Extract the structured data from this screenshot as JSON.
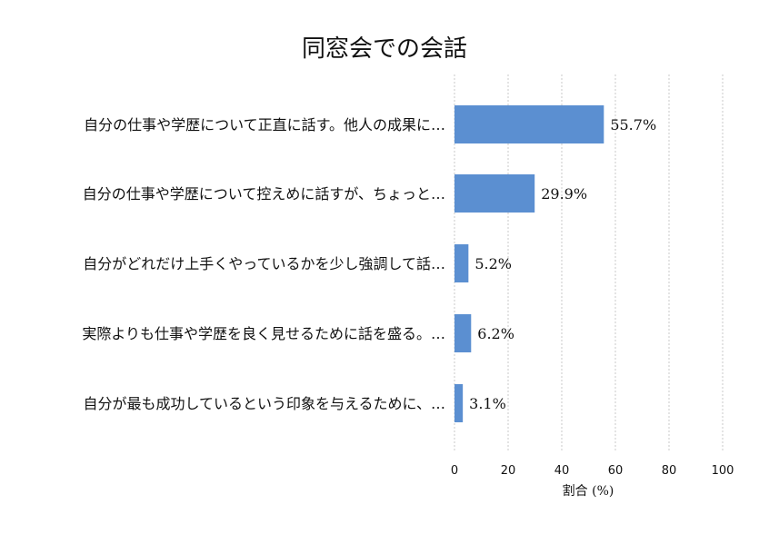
{
  "chart_data": {
    "type": "bar",
    "orientation": "horizontal",
    "title": "同窓会での会話",
    "xlabel": "割合 (%)",
    "ylabel": "",
    "xlim": [
      0,
      100
    ],
    "xticks": [
      0,
      20,
      40,
      60,
      80,
      100
    ],
    "grid": "x-dashed",
    "categories": [
      "自分の仕事や学歴について正直に話す。他人の成果に…",
      "自分の仕事や学歴について控えめに話すが、ちょっと…",
      "自分がどれだけ上手くやっているかを少し強調して話…",
      "実際よりも仕事や学歴を良く見せるために話を盛る。…",
      "自分が最も成功しているという印象を与えるために、…"
    ],
    "values": [
      55.7,
      29.9,
      5.2,
      6.2,
      3.1
    ],
    "value_labels": [
      "55.7%",
      "29.9%",
      "5.2%",
      "6.2%",
      "3.1%"
    ],
    "bar_color": "#5b8fd1"
  }
}
